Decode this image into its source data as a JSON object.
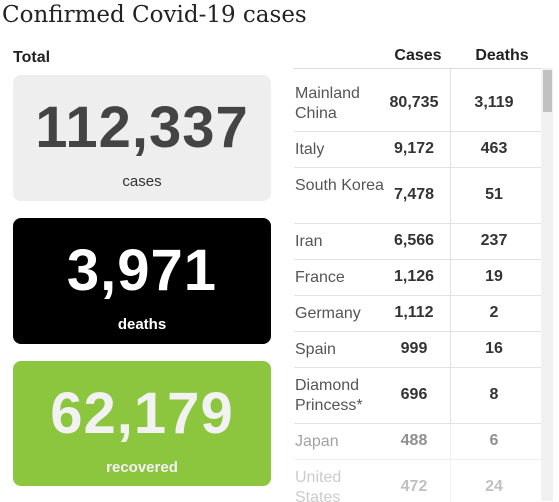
{
  "title": "Confirmed Covid-19 cases",
  "total_label": "Total",
  "cards": {
    "cases": {
      "value": "112,337",
      "label": "cases"
    },
    "deaths": {
      "value": "3,971",
      "label": "deaths"
    },
    "recovered": {
      "value": "62,179",
      "label": "recovered"
    }
  },
  "table": {
    "headers": {
      "cases": "Cases",
      "deaths": "Deaths"
    },
    "rows": [
      {
        "country": "Mainland China",
        "cases": "80,735",
        "deaths": "3,119"
      },
      {
        "country": "Italy",
        "cases": "9,172",
        "deaths": "463"
      },
      {
        "country": "South Korea",
        "cases": "7,478",
        "deaths": "51"
      },
      {
        "country": "Iran",
        "cases": "6,566",
        "deaths": "237"
      },
      {
        "country": "France",
        "cases": "1,126",
        "deaths": "19"
      },
      {
        "country": "Germany",
        "cases": "1,112",
        "deaths": "2"
      },
      {
        "country": "Spain",
        "cases": "999",
        "deaths": "16"
      },
      {
        "country": "Diamond Princess*",
        "cases": "696",
        "deaths": "8"
      },
      {
        "country": "Japan",
        "cases": "488",
        "deaths": "6"
      },
      {
        "country": "United States",
        "cases": "472",
        "deaths": "24"
      }
    ]
  },
  "colors": {
    "cases_card": "#eeeeee",
    "deaths_card": "#000000",
    "recovered_card": "#8cc63f"
  }
}
